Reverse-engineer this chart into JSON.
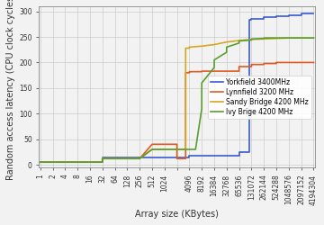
{
  "xlabel": "Array size (KBytes)",
  "ylabel": "Random access latency (CPU clock cycles)",
  "xlim": [
    -0.1,
    22.1
  ],
  "ylim": [
    -5,
    310
  ],
  "yticks": [
    0,
    50,
    100,
    150,
    200,
    250,
    300
  ],
  "xtick_positions": [
    0,
    1,
    2,
    3,
    4,
    5,
    6,
    7,
    8,
    9,
    10,
    11,
    12,
    13,
    14,
    15,
    16,
    17,
    18,
    19,
    20,
    21,
    22
  ],
  "xtick_labels": [
    "1",
    "2",
    "4",
    "8",
    "16",
    "32",
    "64",
    "128",
    "256",
    "512",
    "1024",
    "",
    "4096",
    "8192",
    "16384",
    "32768",
    "65536",
    "131072",
    "262144",
    "524288",
    "1048576",
    "2097152",
    "4194304"
  ],
  "series": [
    {
      "name": "Yorkfield 3400MHz",
      "color": "#3a5bcc",
      "lw": 1.2,
      "x": [
        0,
        1,
        2,
        3,
        4,
        5,
        5,
        6,
        6,
        7,
        7,
        8,
        8,
        9,
        9,
        10,
        10,
        11,
        11,
        12,
        12,
        13,
        13,
        14,
        14,
        15,
        15,
        16,
        16,
        16.8,
        16.8,
        17,
        17,
        18,
        18,
        19,
        19,
        20,
        20,
        21,
        21,
        22
      ],
      "y": [
        5,
        5,
        5,
        5,
        5,
        5,
        15,
        15,
        15,
        15,
        15,
        15,
        15,
        15,
        15,
        15,
        15,
        15,
        15,
        15,
        18,
        18,
        18,
        18,
        18,
        18,
        18,
        18,
        25,
        25,
        283,
        283,
        285,
        285,
        288,
        288,
        290,
        290,
        292,
        292,
        295,
        295
      ]
    },
    {
      "name": "Lynnfield 3200 MHz",
      "color": "#e05a20",
      "lw": 1.2,
      "x": [
        0,
        1,
        2,
        3,
        4,
        5,
        5,
        6,
        6,
        7,
        7,
        8,
        8,
        9,
        9,
        10,
        10,
        11,
        11,
        11.7,
        11.7,
        12,
        12,
        13,
        13,
        14,
        14,
        15,
        15,
        16,
        16,
        17,
        17,
        18,
        18,
        19,
        19,
        20,
        20,
        21,
        21,
        22
      ],
      "y": [
        5,
        5,
        5,
        5,
        5,
        5,
        12,
        12,
        12,
        12,
        12,
        12,
        12,
        40,
        40,
        40,
        40,
        40,
        12,
        12,
        180,
        180,
        182,
        182,
        183,
        183,
        183,
        183,
        183,
        183,
        192,
        192,
        196,
        196,
        198,
        198,
        200,
        200,
        200,
        200,
        200,
        200
      ]
    },
    {
      "name": "Sandy Bridge 4200 MHz",
      "color": "#d4a820",
      "lw": 1.2,
      "x": [
        0,
        1,
        2,
        3,
        4,
        5,
        5,
        6,
        6,
        7,
        7,
        8,
        8,
        9,
        9,
        10,
        10,
        11,
        11,
        11.7,
        11.7,
        12,
        12,
        13,
        13,
        14,
        14,
        15,
        15,
        16,
        16,
        17,
        17,
        18,
        18,
        19,
        19,
        20,
        20,
        21,
        21,
        22
      ],
      "y": [
        5,
        5,
        5,
        5,
        5,
        5,
        12,
        12,
        12,
        12,
        12,
        12,
        12,
        30,
        30,
        30,
        30,
        30,
        30,
        30,
        228,
        228,
        230,
        232,
        232,
        235,
        235,
        240,
        240,
        243,
        243,
        245,
        245,
        246,
        246,
        247,
        247,
        248,
        248,
        248,
        248,
        248
      ]
    },
    {
      "name": "Ivy Brige 4200 MHz",
      "color": "#5a9e2f",
      "lw": 1.2,
      "x": [
        0,
        1,
        2,
        3,
        4,
        5,
        5,
        6,
        6,
        7,
        7,
        8,
        8,
        9,
        9,
        10,
        10,
        11,
        11,
        12,
        12,
        12.5,
        12.5,
        13,
        13,
        14,
        14,
        15,
        15,
        16,
        16,
        17,
        17,
        18,
        18,
        19,
        19,
        20,
        20,
        21,
        21,
        22
      ],
      "y": [
        5,
        5,
        5,
        5,
        5,
        5,
        12,
        12,
        12,
        12,
        12,
        12,
        12,
        30,
        30,
        30,
        30,
        30,
        30,
        30,
        30,
        30,
        30,
        110,
        160,
        190,
        205,
        220,
        230,
        238,
        242,
        244,
        246,
        247,
        248,
        248,
        248,
        248,
        248,
        248,
        248,
        248
      ]
    }
  ],
  "grid_color": "#cccccc",
  "bg_color": "#f2f2f2",
  "axis_color": "#888888",
  "tick_label_fontsize": 5.5,
  "axis_label_fontsize": 7,
  "legend_fontsize": 5.5
}
